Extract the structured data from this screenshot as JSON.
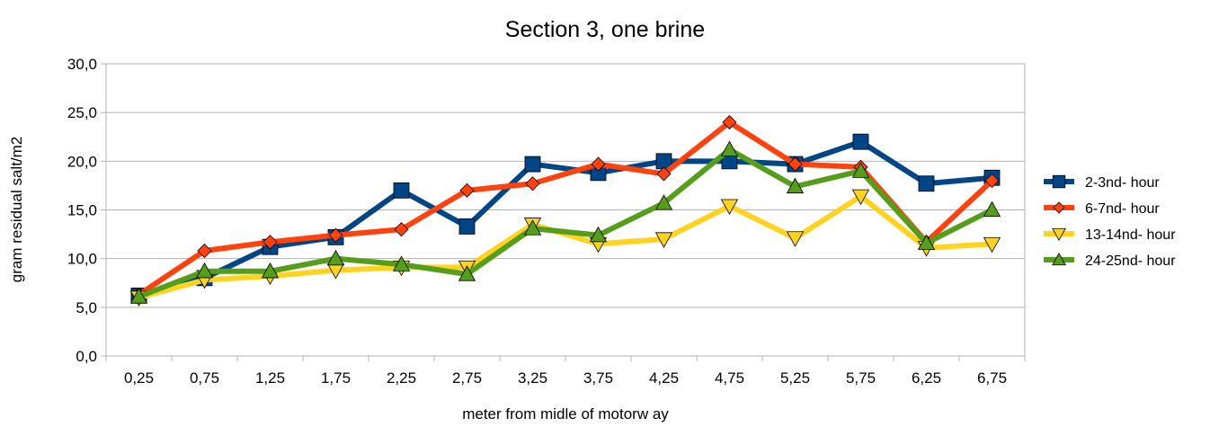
{
  "chart_data": {
    "type": "line",
    "title": "Section 3, one brine",
    "xlabel": "meter from midle of motorw ay",
    "ylabel": "gram residual salt/m2",
    "categories": [
      "0,25",
      "0,75",
      "1,25",
      "1,75",
      "2,25",
      "2,75",
      "3,25",
      "3,75",
      "4,25",
      "4,75",
      "5,25",
      "5,75",
      "6,25",
      "6,75"
    ],
    "ylim": [
      0,
      30
    ],
    "yticks": [
      "0,0",
      "5,0",
      "10,0",
      "15,0",
      "20,0",
      "25,0",
      "30,0"
    ],
    "grid": true,
    "legend_position": "right",
    "series": [
      {
        "name": "2-3nd- hour",
        "color": "#004586",
        "marker": "square",
        "values": [
          6.2,
          8.0,
          11.2,
          12.2,
          17.0,
          13.3,
          19.7,
          18.8,
          20.0,
          20.0,
          19.7,
          22.0,
          17.7,
          18.3
        ]
      },
      {
        "name": "6-7nd- hour",
        "color": "#ff420e",
        "marker": "diamond",
        "values": [
          6.3,
          10.8,
          11.7,
          12.4,
          13.0,
          17.0,
          17.7,
          19.7,
          18.7,
          24.0,
          19.7,
          19.4,
          11.7,
          18.0
        ]
      },
      {
        "name": "13-14nd- hour",
        "color": "#ffd320",
        "marker": "triangle-down",
        "values": [
          6.0,
          7.8,
          8.2,
          8.8,
          9.1,
          9.1,
          13.5,
          11.5,
          12.0,
          15.4,
          12.1,
          16.4,
          11.1,
          11.5
        ]
      },
      {
        "name": "24-25nd- hour",
        "color": "#579d1c",
        "marker": "triangle-up",
        "values": [
          6.1,
          8.7,
          8.7,
          10.0,
          9.4,
          8.4,
          13.1,
          12.4,
          15.7,
          21.2,
          17.4,
          19.0,
          11.6,
          15.0
        ]
      }
    ]
  }
}
